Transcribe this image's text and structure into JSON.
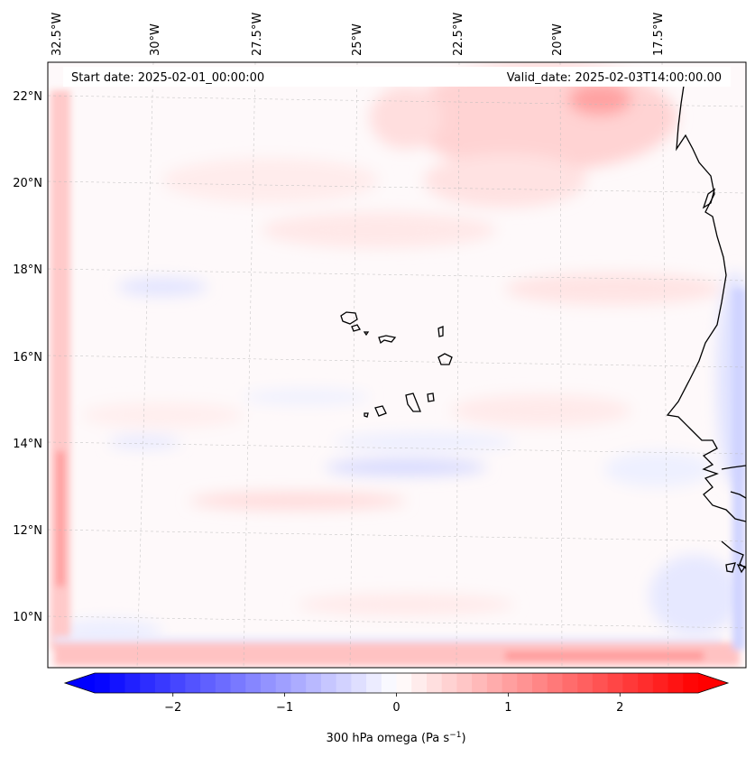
{
  "map": {
    "start_label": "Start date: 2025-02-01_00:00:00",
    "valid_label": "Valid_date: 2025-02-03T14:00:00.00",
    "variable": "300 hPa omega",
    "units": "Pa s",
    "units_exponent": "−1",
    "lon_labels": [
      "32.5°W",
      "30°W",
      "27.5°W",
      "25°W",
      "22.5°W",
      "20°W",
      "17.5°W"
    ],
    "lat_labels": [
      "22°N",
      "20°N",
      "18°N",
      "16°N",
      "14°N",
      "12°N",
      "10°N"
    ],
    "colorbar": {
      "min": -2.7,
      "max": 2.7,
      "ticks": [
        {
          "value": -2,
          "label": "−2"
        },
        {
          "value": -1,
          "label": "−1"
        },
        {
          "value": 0,
          "label": "0"
        },
        {
          "value": 1,
          "label": "1"
        },
        {
          "value": 2,
          "label": "2"
        }
      ],
      "low_color": "#0000ff",
      "mid_color": "#ffffff",
      "high_color": "#ff0000",
      "levels": 40
    }
  }
}
